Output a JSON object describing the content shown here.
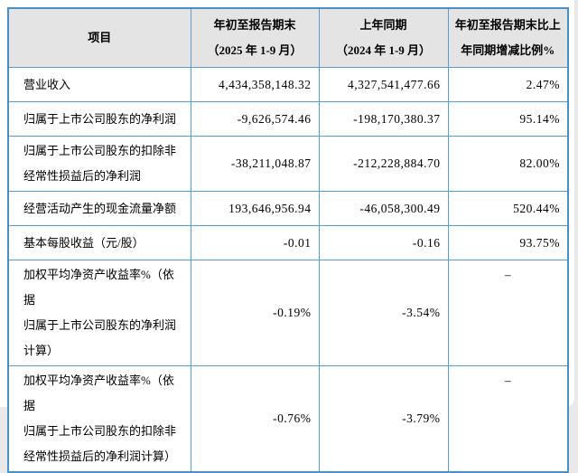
{
  "colors": {
    "table_border": "#4a90c8",
    "cell_border": "#5b9bd5",
    "header_background": "#e4e4e4",
    "text": "#000000"
  },
  "table": {
    "columns": [
      {
        "label": "项目"
      },
      {
        "label": "年初至报告期末\n（2025 年 1-9 月）"
      },
      {
        "label": "上年同期\n（2024 年 1-9 月）"
      },
      {
        "label": "年初至报告期末比上\n年同期增减比例%"
      }
    ],
    "rows": [
      {
        "label": "营业收入",
        "current": "4,434,358,148.32",
        "prior": "4,327,541,477.66",
        "change": "2.47%"
      },
      {
        "label": "归属于上市公司股东的净利润",
        "current": "-9,626,574.46",
        "prior": "-198,170,380.37",
        "change": "95.14%"
      },
      {
        "label": "归属于上市公司股东的扣除非\n经常性损益后的净利润",
        "current": "-38,211,048.87",
        "prior": "-212,228,884.70",
        "change": "82.00%"
      },
      {
        "label": "经营活动产生的现金流量净额",
        "current": "193,646,956.94",
        "prior": "-46,058,300.49",
        "change": "520.44%"
      },
      {
        "label": "基本每股收益（元/股）",
        "current": "-0.01",
        "prior": "-0.16",
        "change": "93.75%"
      },
      {
        "label": "加权平均净资产收益率%（依据\n归属于上市公司股东的净利润\n计算）",
        "current": "-0.19%",
        "prior": "-3.54%",
        "change": "–"
      },
      {
        "label": "加权平均净资产收益率%（依据\n归属于上市公司股东的扣除非\n经常性损益后的净利润计算）",
        "current": "-0.76%",
        "prior": "-3.79%",
        "change": "–"
      }
    ]
  }
}
